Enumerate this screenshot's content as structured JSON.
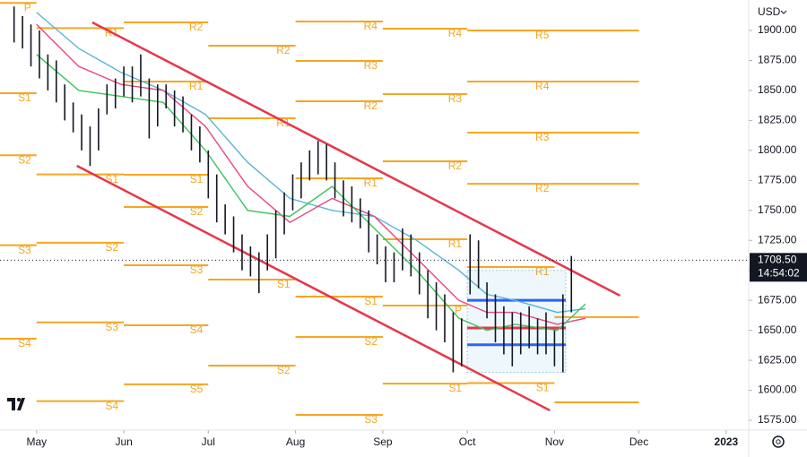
{
  "chart_data": {
    "type": "ohlc",
    "currency": "USD",
    "last_price": {
      "value": 1708.5,
      "label": "1708.50"
    },
    "countdown": "14:54:02",
    "color": "#131722",
    "x": [
      -8,
      -5,
      -2,
      1,
      4,
      7,
      10,
      13,
      16,
      19,
      22,
      25,
      28,
      31,
      34,
      37,
      40,
      43,
      46,
      49,
      52,
      55,
      58,
      61,
      64,
      67,
      70,
      73,
      76,
      79,
      82,
      85,
      88,
      91,
      94,
      97,
      100,
      103,
      106,
      109,
      112,
      115,
      118,
      121,
      124,
      127,
      130,
      133,
      136,
      139,
      142,
      145,
      148,
      151,
      154,
      157,
      160,
      163,
      166,
      169,
      172,
      175,
      178,
      181,
      184,
      187,
      190
    ],
    "high": [
      1920,
      1912,
      1905,
      1900,
      1880,
      1875,
      1855,
      1840,
      1830,
      1820,
      1835,
      1855,
      1860,
      1870,
      1870,
      1880,
      1860,
      1855,
      1855,
      1850,
      1845,
      1830,
      1820,
      1800,
      1780,
      1755,
      1745,
      1730,
      1720,
      1715,
      1730,
      1750,
      1765,
      1780,
      1790,
      1800,
      1808,
      1805,
      1790,
      1775,
      1770,
      1760,
      1750,
      1730,
      1720,
      1715,
      1735,
      1730,
      1715,
      1700,
      1690,
      1680,
      1665,
      1660,
      1730,
      1725,
      1690,
      1680,
      1670,
      1665,
      1665,
      1670,
      1660,
      1665,
      1650,
      1680,
      1712
    ],
    "low": [
      1890,
      1885,
      1870,
      1860,
      1850,
      1840,
      1825,
      1815,
      1800,
      1787,
      1800,
      1830,
      1835,
      1845,
      1840,
      1845,
      1810,
      1820,
      1835,
      1820,
      1815,
      1800,
      1790,
      1760,
      1740,
      1730,
      1715,
      1700,
      1695,
      1681,
      1700,
      1710,
      1730,
      1750,
      1760,
      1775,
      1780,
      1775,
      1760,
      1745,
      1740,
      1735,
      1715,
      1705,
      1690,
      1690,
      1700,
      1695,
      1680,
      1660,
      1650,
      1640,
      1615,
      1620,
      1680,
      1685,
      1660,
      1640,
      1630,
      1620,
      1630,
      1635,
      1630,
      1630,
      1620,
      1615,
      1665
    ],
    "xlim": [
      -13,
      253
    ],
    "xticks": [
      {
        "value": 0,
        "label": "May"
      },
      {
        "value": 31,
        "label": "Jun"
      },
      {
        "value": 61,
        "label": "Jul"
      },
      {
        "value": 92,
        "label": "Aug"
      },
      {
        "value": 123,
        "label": "Sep"
      },
      {
        "value": 153,
        "label": "Oct"
      },
      {
        "value": 184,
        "label": "Nov"
      },
      {
        "value": 214,
        "label": "Dec"
      },
      {
        "value": 245,
        "label": "2023"
      }
    ],
    "ylim": [
      1566.8,
      1925.4
    ],
    "yticks": [
      {
        "value": 1575,
        "label": "1575.00"
      },
      {
        "value": 1600,
        "label": "1600.00"
      },
      {
        "value": 1625,
        "label": "1625.00"
      },
      {
        "value": 1650,
        "label": "1650.00"
      },
      {
        "value": 1675,
        "label": "1675.00"
      },
      {
        "value": 1700,
        "label": "1700.00"
      },
      {
        "value": 1725,
        "label": "1725.00"
      },
      {
        "value": 1750,
        "label": "1750.00"
      },
      {
        "value": 1775,
        "label": "1775.00"
      },
      {
        "value": 1800,
        "label": "1800.00"
      },
      {
        "value": 1825,
        "label": "1825.00"
      },
      {
        "value": 1850,
        "label": "1850.00"
      },
      {
        "value": 1875,
        "label": "1875.00"
      },
      {
        "value": 1900,
        "label": "1900.00"
      }
    ],
    "moving_averages": [
      {
        "color": "#5ab4d6",
        "x": [
          0,
          15,
          30,
          45,
          60,
          75,
          90,
          105,
          120,
          135,
          150,
          160,
          170,
          185,
          195
        ],
        "values": [
          1915,
          1885,
          1865,
          1850,
          1830,
          1790,
          1760,
          1750,
          1745,
          1725,
          1700,
          1680,
          1675,
          1665,
          1668
        ]
      },
      {
        "color": "#e8467c",
        "x": [
          0,
          15,
          30,
          45,
          60,
          75,
          90,
          105,
          120,
          135,
          150,
          160,
          170,
          185,
          195
        ],
        "values": [
          1905,
          1870,
          1855,
          1850,
          1820,
          1770,
          1740,
          1760,
          1745,
          1710,
          1675,
          1665,
          1665,
          1655,
          1660
        ]
      },
      {
        "color": "#3cc45a",
        "x": [
          0,
          15,
          30,
          45,
          60,
          75,
          90,
          105,
          120,
          135,
          150,
          160,
          170,
          185,
          195
        ],
        "values": [
          1880,
          1850,
          1845,
          1840,
          1800,
          1750,
          1745,
          1770,
          1735,
          1700,
          1660,
          1650,
          1655,
          1650,
          1672
        ]
      }
    ],
    "channel": {
      "color": "#e5374b",
      "lines": [
        {
          "x": [
            19.8,
            207.3
          ],
          "values": [
            1906.7,
            1678.9
          ]
        },
        {
          "x": [
            14.3,
            182.4
          ],
          "values": [
            1787.2,
            1583.2
          ]
        }
      ]
    },
    "pivot_color": "#f5a623",
    "pivots": [
      {
        "start": -13,
        "end": 0,
        "levels": [
          {
            "label": "P",
            "value": 1923
          },
          {
            "label": "S1",
            "value": 1847.7
          },
          {
            "label": "S2",
            "value": 1796
          },
          {
            "label": "S3",
            "value": 1721
          },
          {
            "label": "S4",
            "value": 1643
          }
        ]
      },
      {
        "start": 0,
        "end": 31,
        "levels": [
          {
            "label": "R1",
            "value": 1902
          },
          {
            "label": "S1",
            "value": 1780
          },
          {
            "label": "S2",
            "value": 1723
          },
          {
            "label": "S3",
            "value": 1656.6
          },
          {
            "label": "S4",
            "value": 1591
          }
        ]
      },
      {
        "start": 31,
        "end": 61,
        "levels": [
          {
            "label": "R2",
            "value": 1906.7
          },
          {
            "label": "R1",
            "value": 1857.4
          },
          {
            "label": "S1",
            "value": 1779.7
          },
          {
            "label": "S2",
            "value": 1752.8
          },
          {
            "label": "S3",
            "value": 1704.3
          },
          {
            "label": "S4",
            "value": 1654.2
          },
          {
            "label": "S5",
            "value": 1605
          }
        ]
      },
      {
        "start": 61,
        "end": 92,
        "levels": [
          {
            "label": "R2",
            "value": 1887.3
          },
          {
            "label": "R1",
            "value": 1826.8
          },
          {
            "label": "S1",
            "value": 1692.3
          },
          {
            "label": "S2",
            "value": 1620.6
          }
        ]
      },
      {
        "start": 92,
        "end": 123,
        "levels": [
          {
            "label": "R4",
            "value": 1907.5
          },
          {
            "label": "R3",
            "value": 1874.6
          },
          {
            "label": "R2",
            "value": 1841
          },
          {
            "label": "R1",
            "value": 1776.7
          },
          {
            "label": "S1",
            "value": 1678.1
          },
          {
            "label": "S2",
            "value": 1644.5
          },
          {
            "label": "S3",
            "value": 1579.5
          }
        ]
      },
      {
        "start": 123,
        "end": 153,
        "levels": [
          {
            "label": "R4",
            "value": 1901.5
          },
          {
            "label": "R3",
            "value": 1847
          },
          {
            "label": "R2",
            "value": 1790.9
          },
          {
            "label": "R1",
            "value": 1725.9
          },
          {
            "label": "P",
            "value": 1670.6
          },
          {
            "label": "S1",
            "value": 1605.6
          }
        ]
      },
      {
        "start": 153,
        "end": 184,
        "levels": [
          {
            "label": "R5",
            "value": 1900
          },
          {
            "label": "R4",
            "value": 1857.4
          },
          {
            "label": "R3",
            "value": 1814.8
          },
          {
            "label": "R2",
            "value": 1772.2
          },
          {
            "label": "R1",
            "value": 1702.8
          },
          {
            "label": "S1",
            "value": 1606
          }
        ]
      },
      {
        "start": 184,
        "end": 214,
        "levels": [
          {
            "value": 1900
          },
          {
            "value": 1857.4
          },
          {
            "value": 1814.8
          },
          {
            "value": 1772.2
          },
          {
            "value": 1661
          },
          {
            "value": 1590
          }
        ]
      }
    ],
    "range_box": {
      "start": 153,
      "end": 188,
      "low": 1615,
      "high": 1700
    },
    "range_levels": {
      "start": 153,
      "end": 188,
      "levels": [
        {
          "value": 1675,
          "color": "#2962ff"
        },
        {
          "value": 1652,
          "color": "#e5374b"
        },
        {
          "value": 1638,
          "color": "#2962ff"
        }
      ]
    }
  }
}
